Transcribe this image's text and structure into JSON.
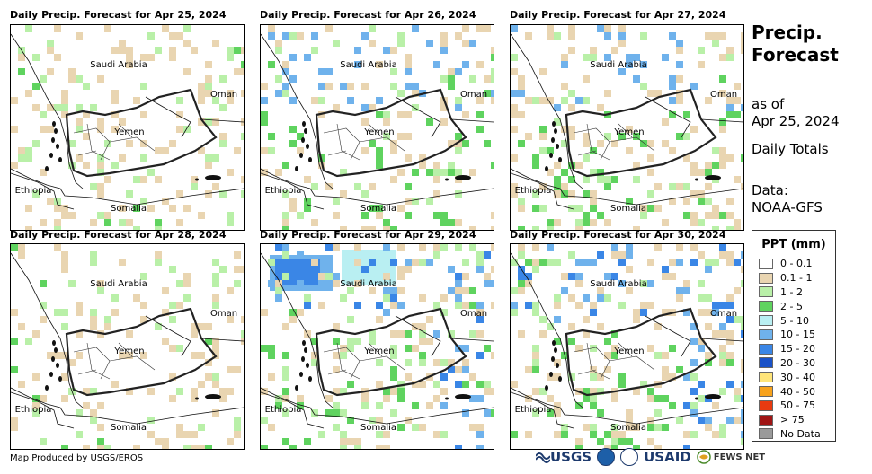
{
  "panels": [
    {
      "title": "Daily Precip. Forecast for Apr 25, 2024",
      "intensity": 0
    },
    {
      "title": "Daily Precip. Forecast for Apr 26, 2024",
      "intensity": 1
    },
    {
      "title": "Daily Precip. Forecast for Apr 27, 2024",
      "intensity": 1
    },
    {
      "title": "Daily Precip. Forecast for Apr 28, 2024",
      "intensity": 0
    },
    {
      "title": "Daily Precip. Forecast for Apr 29, 2024",
      "intensity": 3
    },
    {
      "title": "Daily Precip. Forecast for Apr 30, 2024",
      "intensity": 2
    }
  ],
  "map_labels": {
    "saudi_arabia": "Saudi Arabia",
    "oman": "Oman",
    "yemen": "Yemen",
    "ethiopia": "Ethiopia",
    "somalia": "Somalia"
  },
  "side": {
    "title_line1": "Precip.",
    "title_line2": "Forecast",
    "asof_line1": "as of",
    "asof_line2": "Apr 25, 2024",
    "totals": "Daily Totals",
    "data_line1": "Data:",
    "data_line2": "NOAA-GFS"
  },
  "legend": {
    "title": "PPT (mm)",
    "items": [
      {
        "label": "0 - 0.1",
        "color": "#ffffff"
      },
      {
        "label": "0.1 - 1",
        "color": "#e9d5b1"
      },
      {
        "label": "1 - 2",
        "color": "#b9f0a8"
      },
      {
        "label": "2 - 5",
        "color": "#5fd35f"
      },
      {
        "label": "5 - 10",
        "color": "#b9eff2"
      },
      {
        "label": "10 - 15",
        "color": "#6fb2ec"
      },
      {
        "label": "15 - 20",
        "color": "#3a86e6"
      },
      {
        "label": "20 - 30",
        "color": "#1a52c8"
      },
      {
        "label": "30 - 40",
        "color": "#ffe57a"
      },
      {
        "label": "40 - 50",
        "color": "#f7a21c"
      },
      {
        "label": "50 - 75",
        "color": "#e83a10"
      },
      {
        "label": "> 75",
        "color": "#a01515"
      },
      {
        "label": "No Data",
        "color": "#9a9a9a"
      }
    ]
  },
  "footer": "Map Produced by USGS/EROS",
  "logos": {
    "usgs": "USGS",
    "usaid": "USAID",
    "fews": "FEWS NET"
  }
}
